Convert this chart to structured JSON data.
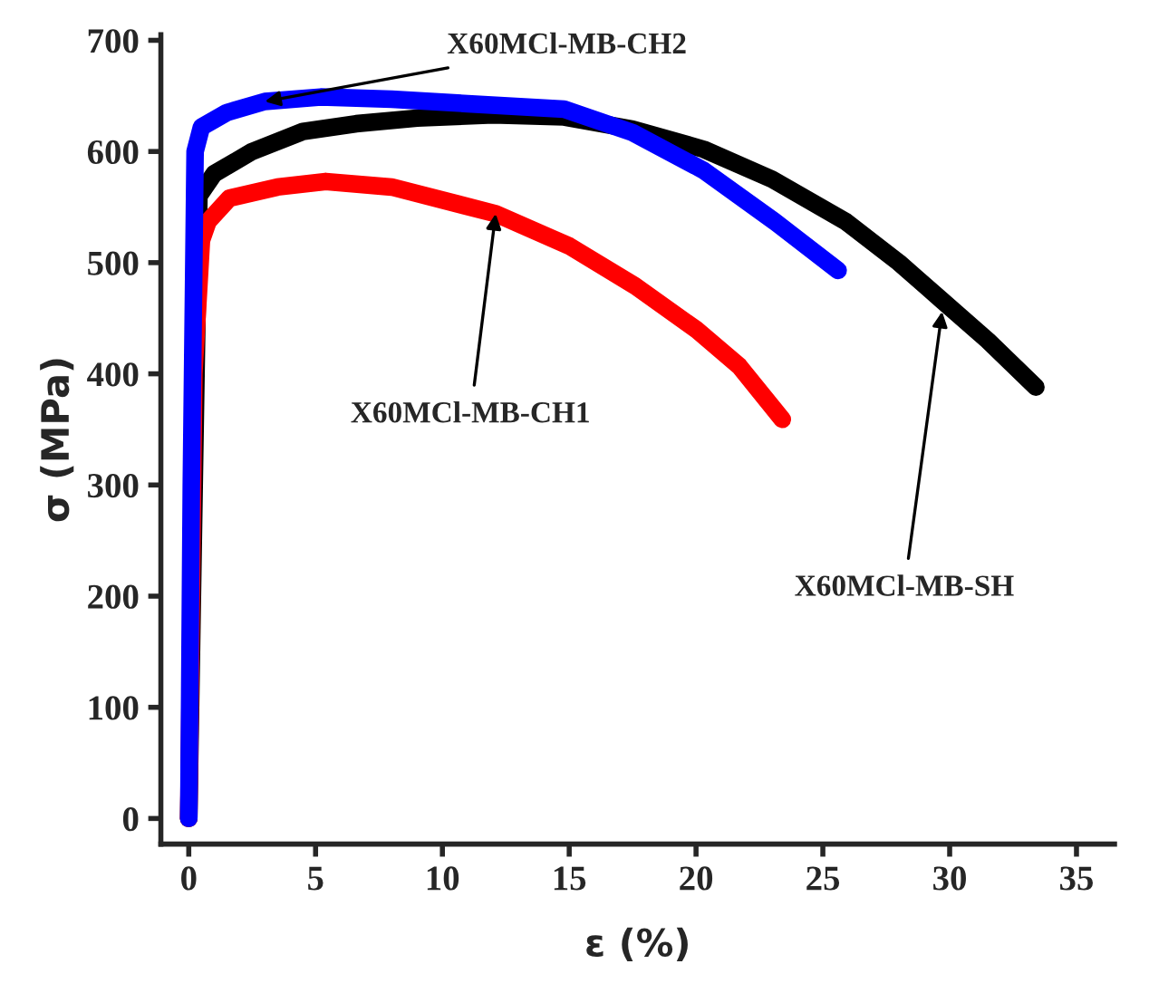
{
  "chart_data": {
    "type": "line",
    "xlabel": "ε (%)",
    "ylabel": "σ (MPa)",
    "xlim": [
      -1.1,
      36.5
    ],
    "ylim": [
      -23,
      705
    ],
    "xticks": [
      0,
      5,
      10,
      15,
      20,
      25,
      30,
      35
    ],
    "yticks": [
      0,
      100,
      200,
      300,
      400,
      500,
      600,
      700
    ],
    "grid": false,
    "marker": "none",
    "line_style": "solid",
    "series": [
      {
        "color": "#000000",
        "x": [
          0,
          0.4,
          1.0,
          2.5,
          4.5,
          6.6,
          9,
          12,
          14.8,
          17.5,
          20.3,
          23,
          25.9,
          28,
          29.7,
          31.5,
          33.4
        ],
        "values": [
          0,
          560,
          580,
          600,
          618,
          625,
          630,
          633,
          631,
          620,
          602,
          575,
          537,
          500,
          466,
          430,
          388
        ]
      },
      {
        "color": "#ff0000",
        "x": [
          0,
          0.2,
          0.5,
          0.76,
          1.6,
          3.5,
          5.4,
          8,
          12.1,
          15,
          17.6,
          20,
          21.7,
          23.4
        ],
        "values": [
          0,
          400,
          520,
          537,
          558,
          568,
          573,
          568,
          544,
          515,
          479,
          440,
          407,
          359
        ]
      },
      {
        "color": "#0000ff",
        "x": [
          0,
          0.1,
          0.25,
          0.5,
          1.5,
          3,
          5.2,
          8,
          11,
          14.8,
          17.5,
          20.3,
          23.1,
          25.6
        ],
        "values": [
          0,
          300,
          600,
          622,
          635,
          645,
          649,
          647,
          643,
          638,
          617,
          583,
          537,
          493
        ]
      }
    ],
    "annotations": [
      {
        "text": "X60MCl-MB-CH2",
        "x": 3,
        "y": 645
      },
      {
        "text": "X60MCl-MB-CH1",
        "x": 12.1,
        "y": 544
      },
      {
        "text": "X60MCl-MB-SH",
        "x": 29.7,
        "y": 456
      }
    ]
  }
}
